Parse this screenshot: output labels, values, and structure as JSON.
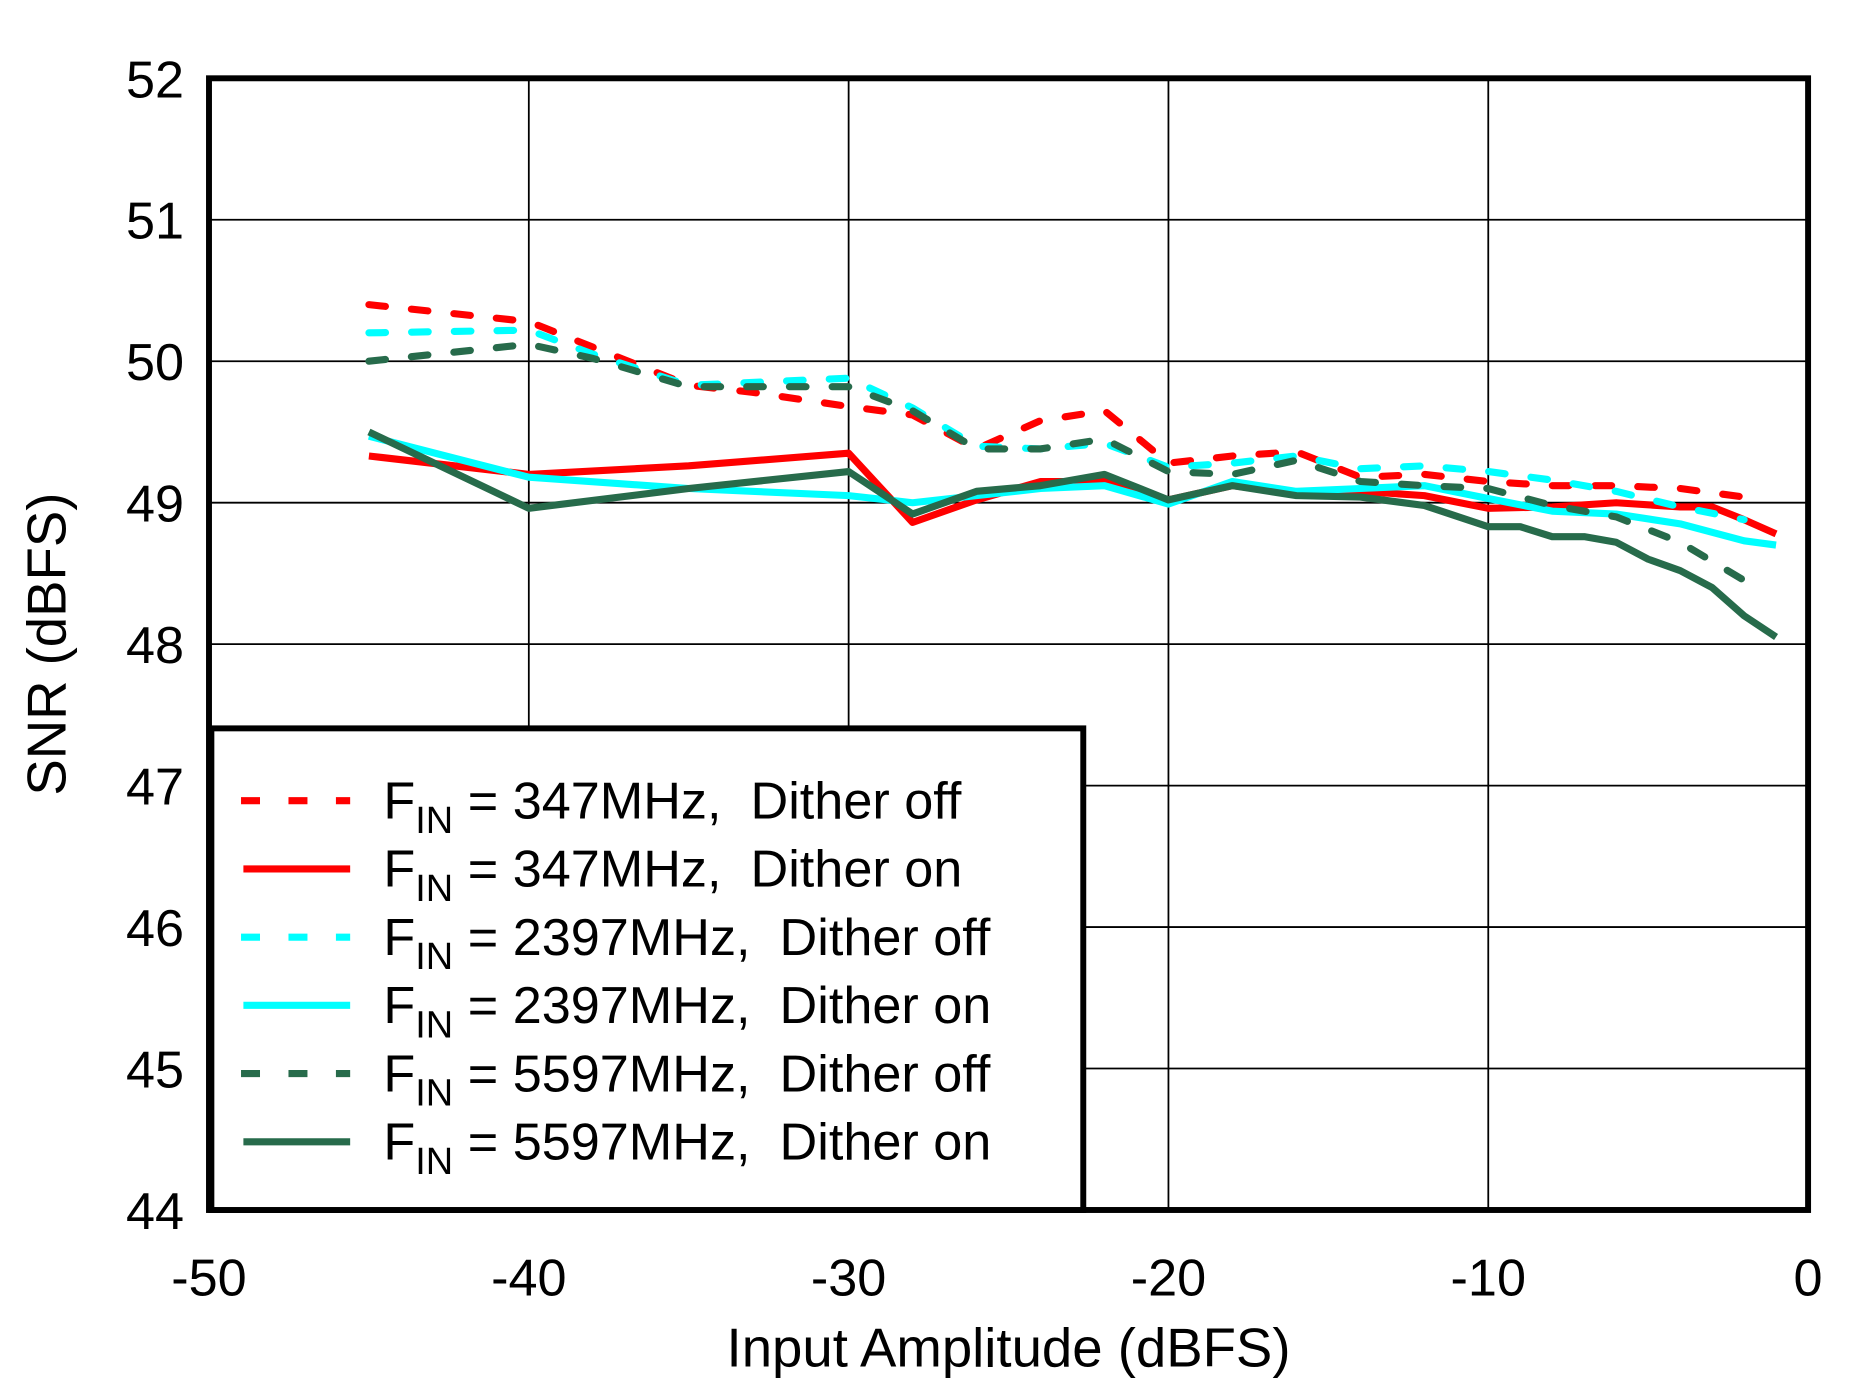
{
  "chart_data": {
    "type": "line",
    "title": "",
    "xlabel": "Input Amplitude  (dBFS)",
    "ylabel": "SNR  (dBFS)",
    "xlim": [
      -50,
      0
    ],
    "ylim": [
      44,
      52
    ],
    "xticks": [
      -50,
      -40,
      -30,
      -20,
      -10,
      0
    ],
    "yticks": [
      44,
      45,
      46,
      47,
      48,
      49,
      50,
      51,
      52
    ],
    "grid": true,
    "legend_position": "bottom-left",
    "series": [
      {
        "name_prefix": "F",
        "name_sub": "IN",
        "name": " = 347MHz,  Dither off",
        "color": "#FF0000",
        "dash": true,
        "x": [
          -45,
          -40,
          -38,
          -35,
          -33,
          -30,
          -28,
          -26,
          -24,
          -22,
          -20,
          -18,
          -16,
          -14,
          -12,
          -10,
          -8,
          -6,
          -4,
          -2
        ],
        "y": [
          50.4,
          50.28,
          50.1,
          49.83,
          49.78,
          49.68,
          49.62,
          49.38,
          49.58,
          49.65,
          49.28,
          49.33,
          49.36,
          49.18,
          49.2,
          49.15,
          49.12,
          49.12,
          49.1,
          49.04
        ]
      },
      {
        "name_prefix": "F",
        "name_sub": "IN",
        "name": " = 347MHz,  Dither on",
        "color": "#FF0000",
        "dash": false,
        "x": [
          -45,
          -40,
          -35,
          -30,
          -28,
          -26,
          -24,
          -22,
          -20,
          -18,
          -16,
          -14,
          -12,
          -10,
          -8,
          -6,
          -4,
          -3,
          -2,
          -1
        ],
        "y": [
          49.33,
          49.2,
          49.26,
          49.35,
          48.86,
          49.02,
          49.15,
          49.15,
          49.02,
          49.12,
          49.06,
          49.08,
          49.05,
          48.96,
          48.97,
          49.0,
          48.97,
          48.97,
          48.88,
          48.78
        ]
      },
      {
        "name_prefix": "F",
        "name_sub": "IN",
        "name": " = 2397MHz,  Dither off",
        "color": "#00FFFF",
        "dash": true,
        "x": [
          -45,
          -40,
          -38,
          -35,
          -30,
          -28,
          -26,
          -24,
          -22,
          -20,
          -18,
          -16,
          -14,
          -12,
          -10,
          -8,
          -6,
          -4,
          -2
        ],
        "y": [
          50.2,
          50.22,
          50.05,
          49.83,
          49.88,
          49.67,
          49.4,
          49.38,
          49.42,
          49.25,
          49.28,
          49.33,
          49.24,
          49.26,
          49.22,
          49.16,
          49.08,
          48.97,
          48.88
        ]
      },
      {
        "name_prefix": "F",
        "name_sub": "IN",
        "name": " = 2397MHz,  Dither on",
        "color": "#00FFFF",
        "dash": false,
        "x": [
          -45,
          -40,
          -35,
          -30,
          -28,
          -26,
          -24,
          -22,
          -20,
          -18,
          -16,
          -14,
          -12,
          -10,
          -8,
          -6,
          -4,
          -2,
          -1
        ],
        "y": [
          49.47,
          49.18,
          49.1,
          49.05,
          49.0,
          49.05,
          49.1,
          49.12,
          48.99,
          49.15,
          49.08,
          49.1,
          49.12,
          49.03,
          48.94,
          48.92,
          48.85,
          48.73,
          48.7
        ]
      },
      {
        "name_prefix": "F",
        "name_sub": "IN",
        "name": " = 5597MHz,  Dither off",
        "color": "#276B4B",
        "dash": true,
        "x": [
          -45,
          -40,
          -38,
          -35,
          -30,
          -28,
          -26,
          -24,
          -22,
          -20,
          -18,
          -16,
          -14,
          -12,
          -10,
          -8,
          -6,
          -4,
          -2
        ],
        "y": [
          50.0,
          50.12,
          50.02,
          49.82,
          49.82,
          49.65,
          49.38,
          49.38,
          49.45,
          49.22,
          49.2,
          49.3,
          49.15,
          49.12,
          49.1,
          48.98,
          48.9,
          48.72,
          48.45
        ]
      },
      {
        "name_prefix": "F",
        "name_sub": "IN",
        "name": " = 5597MHz,  Dither on",
        "color": "#276B4B",
        "dash": false,
        "x": [
          -45,
          -40,
          -35,
          -30,
          -28,
          -26,
          -24,
          -22,
          -20,
          -18,
          -16,
          -14,
          -12,
          -10,
          -9,
          -8,
          -7,
          -6,
          -5,
          -4,
          -3,
          -2,
          -1
        ],
        "y": [
          49.5,
          48.96,
          49.1,
          49.22,
          48.92,
          49.08,
          49.12,
          49.2,
          49.02,
          49.12,
          49.05,
          49.04,
          48.98,
          48.83,
          48.83,
          48.76,
          48.76,
          48.72,
          48.6,
          48.52,
          48.4,
          48.2,
          48.05
        ]
      }
    ]
  }
}
